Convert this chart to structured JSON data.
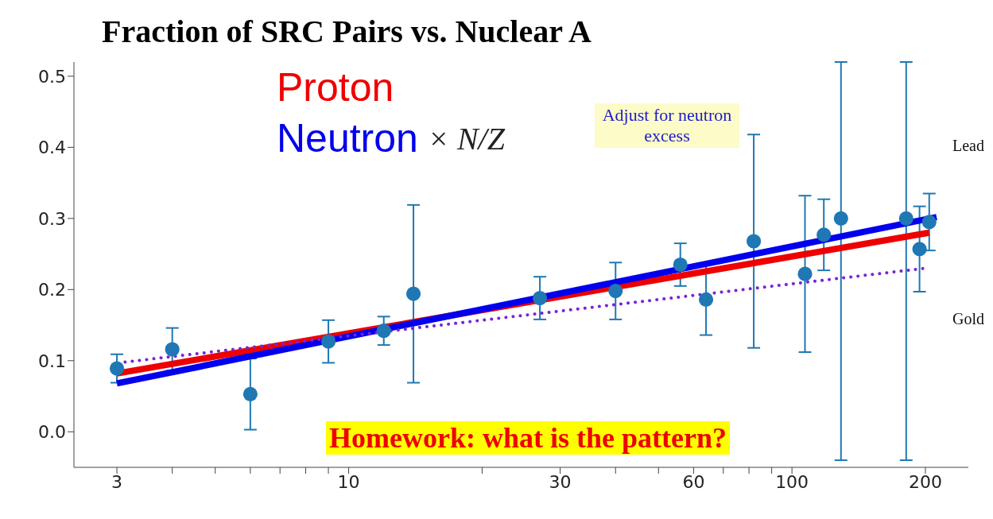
{
  "chart_data": {
    "type": "scatter",
    "title": "Fraction of SRC Pairs vs. Nuclear A",
    "x": [
      3,
      4,
      6,
      9,
      12,
      14,
      27,
      40,
      56,
      64,
      82,
      107,
      118,
      129,
      181,
      194,
      204
    ],
    "log": "x",
    "xlim": [
      2.4,
      250
    ],
    "xticks": [
      3,
      {
        "value": 4,
        "label": null
      },
      {
        "value": 5,
        "label": null
      },
      {
        "value": 6,
        "label": null
      },
      {
        "value": 7,
        "label": null
      },
      {
        "value": 8,
        "label": null
      },
      {
        "value": 9,
        "label": null
      },
      10,
      {
        "value": 20,
        "label": null
      },
      30,
      {
        "value": 40,
        "label": null
      },
      {
        "value": 50,
        "label": null
      },
      60,
      {
        "value": 70,
        "label": null
      },
      {
        "value": 80,
        "label": null
      },
      {
        "value": 90,
        "label": null
      },
      100,
      200
    ],
    "ylim": [
      -0.05,
      0.52
    ],
    "yticks": [
      {
        "value": 0,
        "label": "0.0"
      },
      0.1,
      0.2,
      0.3,
      0.4,
      0.5
    ],
    "grid": false,
    "legend": "top left",
    "series": [
      {
        "color": "#1f77b4",
        "marker": "circle",
        "values": [
          0.089,
          0.116,
          0.053,
          0.127,
          0.142,
          0.194,
          0.188,
          0.198,
          0.235,
          0.186,
          0.268,
          0.222,
          0.277,
          0.3,
          0.3,
          0.257,
          0.295
        ],
        "errors": [
          0.02,
          0.03,
          0.05,
          0.03,
          0.02,
          0.125,
          0.03,
          0.04,
          0.03,
          0.05,
          0.15,
          0.11,
          0.05,
          [
            -0.04,
            0.52
          ],
          [
            -0.04,
            0.52
          ],
          0.06,
          0.04
        ]
      },
      {
        "type": "line",
        "name": "Proton",
        "color": "#ee0000",
        "marker": "none",
        "line_style": "solid",
        "x": [
          3,
          204
        ],
        "values": [
          0.082,
          0.28
        ]
      },
      {
        "type": "line",
        "name": "Neutron",
        "color": "#0000ee",
        "marker": "none",
        "line_style": "solid",
        "x": [
          3,
          212
        ],
        "values": [
          0.068,
          0.302
        ]
      },
      {
        "type": "line",
        "color": "#7b22d8",
        "marker": "none",
        "line_style": "dotted",
        "x": [
          3.13,
          200
        ],
        "values": [
          0.098,
          0.23
        ]
      }
    ],
    "annotations": [
      "× N/Z",
      "Adjust for neutron excess",
      "Homework: what is the pattern?",
      "Lead",
      "Gold"
    ]
  }
}
